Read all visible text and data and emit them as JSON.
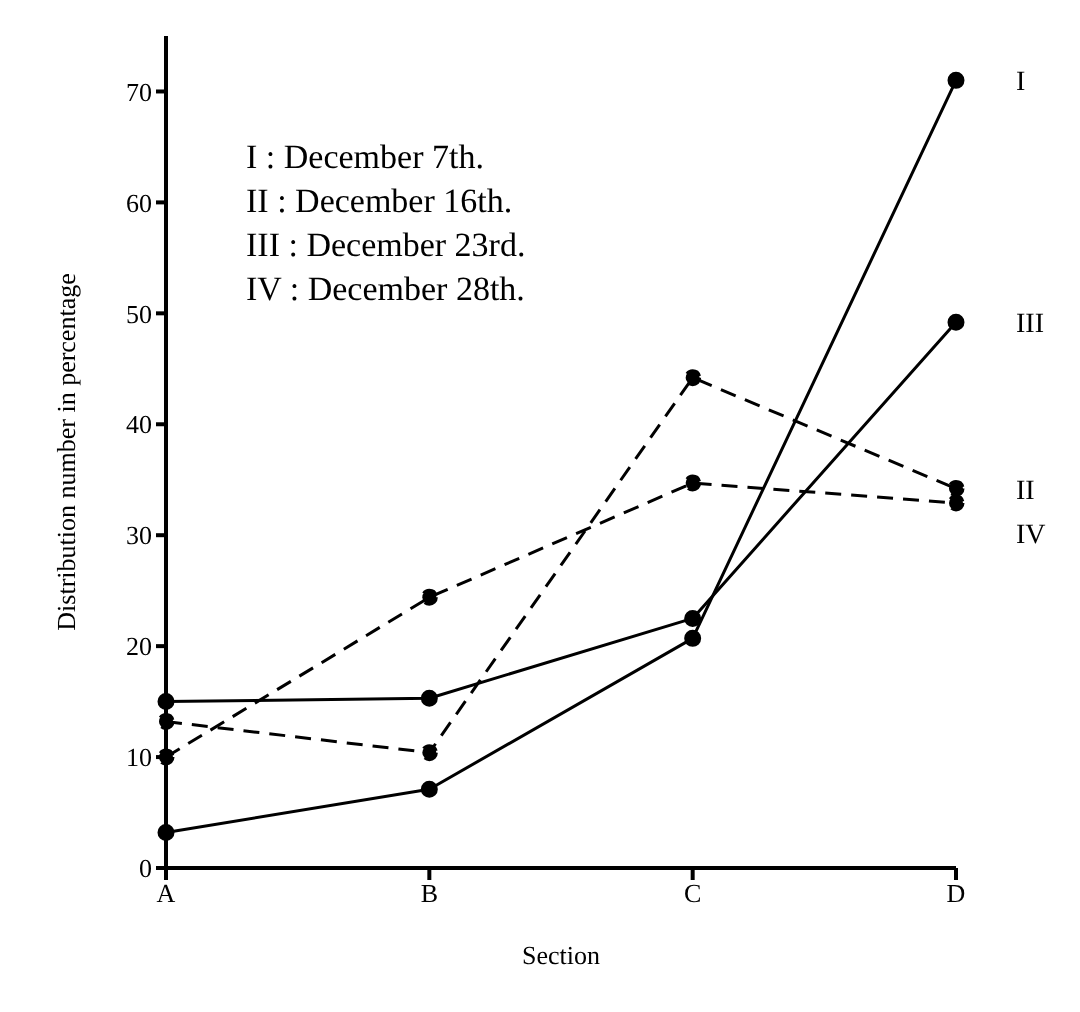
{
  "chart_data": {
    "type": "line",
    "xlabel": "Section",
    "ylabel": "Distribution number in percentage",
    "categories": [
      "A",
      "B",
      "C",
      "D"
    ],
    "series": [
      {
        "name": "I",
        "color": "#000000",
        "line_style": "solid",
        "marker": "circle",
        "values": [
          3.2,
          7.1,
          20.7,
          71
        ]
      },
      {
        "name": "II",
        "color": "#000000",
        "line_style": "dashed",
        "marker": "circle",
        "values": [
          13.2,
          10.4,
          44.2,
          34.2
        ]
      },
      {
        "name": "III",
        "color": "#000000",
        "line_style": "solid",
        "marker": "circle",
        "values": [
          15,
          15.3,
          22.5,
          49.2
        ]
      },
      {
        "name": "IV",
        "color": "#000000",
        "line_style": "dashed",
        "marker": "circle",
        "values": [
          10,
          24.4,
          34.7,
          32.9
        ]
      }
    ],
    "ylim": [
      0,
      75
    ],
    "yticks": [
      0,
      10,
      20,
      30,
      40,
      50,
      60,
      70
    ],
    "grid": false,
    "legend": false,
    "annotations": [
      "I : December 7th.",
      "II : December 16th.",
      "III : December 23rd.",
      "IV : December 28th."
    ]
  }
}
